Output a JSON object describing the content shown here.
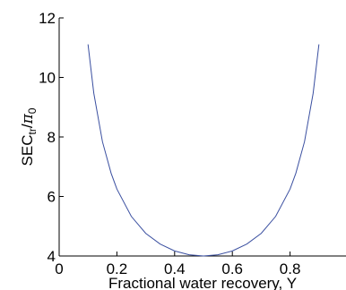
{
  "chart_data": {
    "type": "line",
    "title": "",
    "xlabel": "Fractional water recovery, Y",
    "ylabel_main": "SEC",
    "ylabel_sub": "tr",
    "ylabel_sep": "/",
    "ylabel_pi": "π",
    "ylabel_pi_sub": "0",
    "xlim": [
      0,
      1
    ],
    "ylim": [
      4,
      12
    ],
    "xticks": [
      {
        "value": 0,
        "label": "0"
      },
      {
        "value": 0.2,
        "label": "0.2"
      },
      {
        "value": 0.4,
        "label": "0.4"
      },
      {
        "value": 0.6,
        "label": "0.6"
      },
      {
        "value": 0.8,
        "label": "0.8"
      }
    ],
    "yticks": [
      {
        "value": 4,
        "label": "4"
      },
      {
        "value": 6,
        "label": "6"
      },
      {
        "value": 8,
        "label": "8"
      },
      {
        "value": 10,
        "label": "10"
      },
      {
        "value": 12,
        "label": "12"
      }
    ],
    "grid": false,
    "legend": "none",
    "series": [
      {
        "color": "#3a4fa0",
        "x": [
          0.1,
          0.12,
          0.15,
          0.18,
          0.2,
          0.25,
          0.3,
          0.35,
          0.4,
          0.45,
          0.5,
          0.55,
          0.6,
          0.65,
          0.7,
          0.75,
          0.8,
          0.82,
          0.85,
          0.88,
          0.9
        ],
        "y": [
          11.11,
          9.47,
          7.84,
          6.78,
          6.25,
          5.33,
          4.76,
          4.4,
          4.17,
          4.04,
          4.0,
          4.04,
          4.17,
          4.4,
          4.76,
          5.33,
          6.25,
          6.78,
          7.84,
          9.47,
          11.11
        ]
      }
    ]
  }
}
